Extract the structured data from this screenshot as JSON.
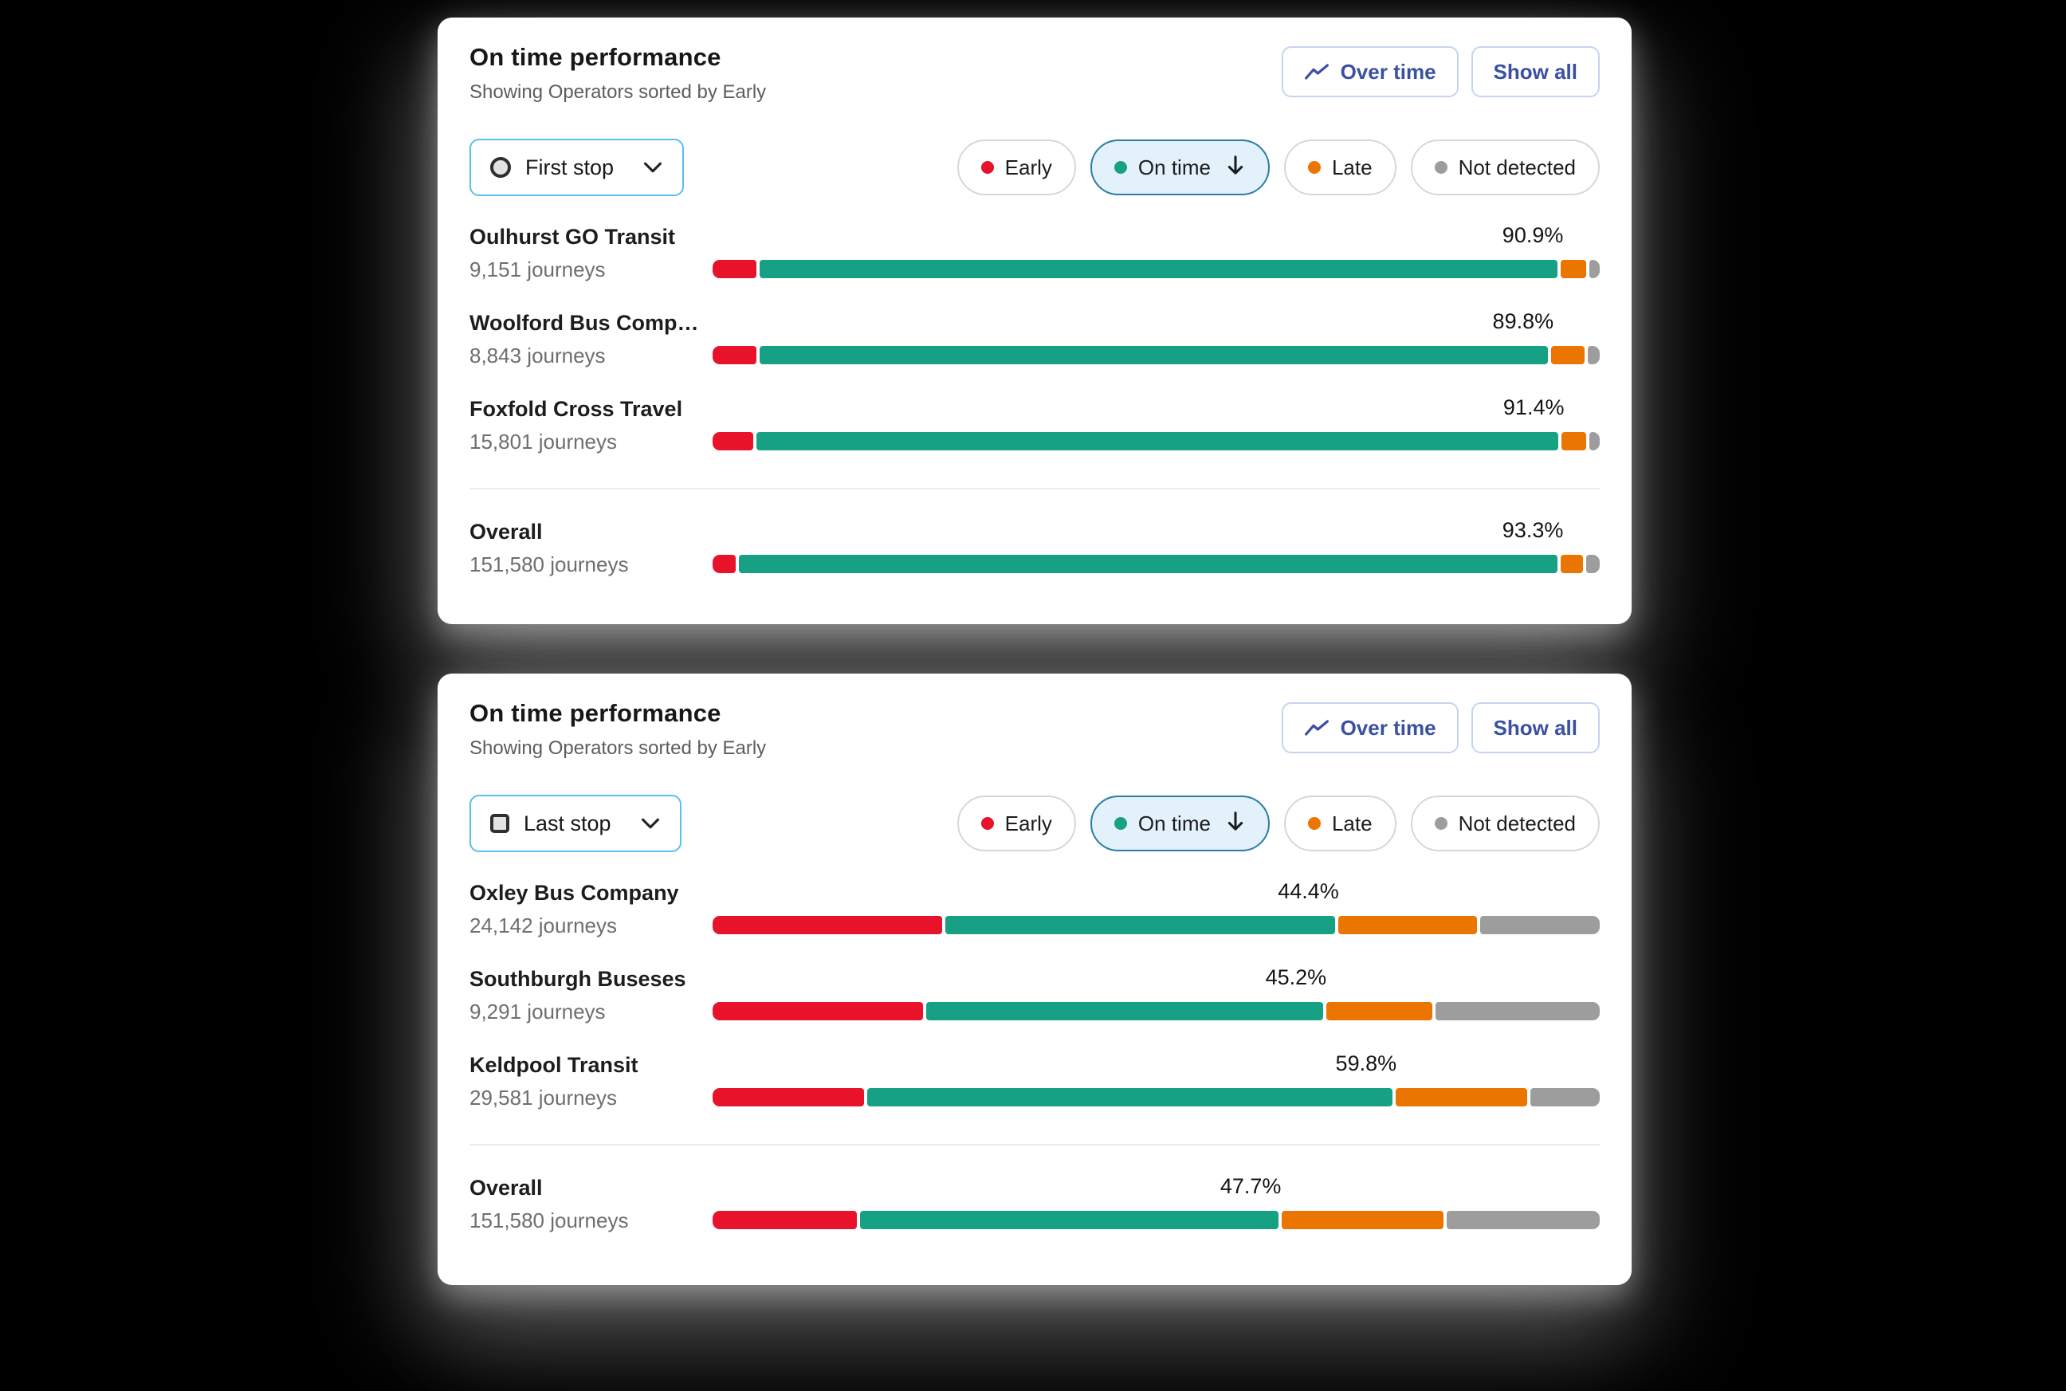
{
  "window": {
    "background": "#000000",
    "card_background": "#ffffff"
  },
  "colors": {
    "early": "#e8132b",
    "on_time": "#17a184",
    "late": "#ea7500",
    "not_detected": "#9d9d9d",
    "accent_blue": "#3a50a2",
    "button_border": "#c7d3f3",
    "dropdown_border": "#58bfee",
    "chip_border": "#d7d7d7",
    "chip_selected_bg": "#e2f1fa",
    "chip_selected_border": "#2b7da5"
  },
  "legend": [
    {
      "id": "early",
      "label": "Early",
      "color": "#e8132b",
      "selected": false
    },
    {
      "id": "on_time",
      "label": "On time",
      "color": "#17a184",
      "selected": true,
      "sort": "descending"
    },
    {
      "id": "late",
      "label": "Late",
      "color": "#ea7500",
      "selected": false
    },
    {
      "id": "not_detected",
      "label": "Not detected",
      "color": "#9d9d9d",
      "selected": false
    }
  ],
  "cards": [
    {
      "title": "On time performance",
      "subtitle": "Showing Operators sorted by Early",
      "buttons": {
        "over_time": "Over time",
        "show_all": "Show all"
      },
      "stop_selector": {
        "label": "First stop",
        "icon": "circle"
      },
      "rows": [
        {
          "name": "Oulhurst GO Transit",
          "journeys": "9,151 journeys",
          "pct_label": "90.9%",
          "segments": {
            "early": 5.0,
            "on_time": 90.9,
            "late": 2.9,
            "not_detected": 1.2
          }
        },
        {
          "name": "Woolford Bus Comp…",
          "journeys": "8,843 journeys",
          "pct_label": "89.8%",
          "segments": {
            "early": 5.0,
            "on_time": 89.8,
            "late": 3.8,
            "not_detected": 1.4
          }
        },
        {
          "name": "Foxfold Cross Travel",
          "journeys": "15,801 journeys",
          "pct_label": "91.4%",
          "segments": {
            "early": 4.6,
            "on_time": 91.4,
            "late": 2.8,
            "not_detected": 1.2
          }
        }
      ],
      "overall": {
        "name": "Overall",
        "journeys": "151,580 journeys",
        "pct_label": "93.3%",
        "segments": {
          "early": 2.6,
          "on_time": 93.3,
          "late": 2.6,
          "not_detected": 1.5
        }
      }
    },
    {
      "title": "On time performance",
      "subtitle": "Showing Operators sorted by Early",
      "buttons": {
        "over_time": "Over time",
        "show_all": "Show all"
      },
      "stop_selector": {
        "label": "Last stop",
        "icon": "square"
      },
      "rows": [
        {
          "name": "Oxley Bus Company",
          "journeys": "24,142 journeys",
          "pct_label": "44.4%",
          "segments": {
            "early": 26.2,
            "on_time": 44.4,
            "late": 15.8,
            "not_detected": 13.6
          }
        },
        {
          "name": "Southburgh Buseses",
          "journeys": "9,291 journeys",
          "pct_label": "45.2%",
          "segments": {
            "early": 24.0,
            "on_time": 45.2,
            "late": 12.1,
            "not_detected": 18.7
          }
        },
        {
          "name": "Keldpool Transit",
          "journeys": "29,581 journeys",
          "pct_label": "59.8%",
          "segments": {
            "early": 17.3,
            "on_time": 59.8,
            "late": 15.0,
            "not_detected": 7.9
          }
        }
      ],
      "overall": {
        "name": "Overall",
        "journeys": "151,580 journeys",
        "pct_label": "47.7%",
        "segments": {
          "early": 16.4,
          "on_time": 47.7,
          "late": 18.5,
          "not_detected": 17.4
        }
      }
    }
  ],
  "chart_data": [
    {
      "type": "bar",
      "orientation": "horizontal",
      "stacked": true,
      "title": "On time performance — First stop",
      "categories": [
        "Oulhurst GO Transit",
        "Woolford Bus Comp…",
        "Foxfold Cross Travel",
        "Overall"
      ],
      "journeys": [
        9151,
        8843,
        15801,
        151580
      ],
      "series": [
        {
          "name": "Early",
          "values": [
            5.0,
            5.0,
            4.6,
            2.6
          ]
        },
        {
          "name": "On time",
          "values": [
            90.9,
            89.8,
            91.4,
            93.3
          ]
        },
        {
          "name": "Late",
          "values": [
            2.9,
            3.8,
            2.8,
            2.6
          ]
        },
        {
          "name": "Not detected",
          "values": [
            1.2,
            1.4,
            1.2,
            1.5
          ]
        }
      ],
      "value_labels": [
        "90.9%",
        "89.8%",
        "91.4%",
        "93.3%"
      ],
      "xlim": [
        0,
        100
      ],
      "legend_position": "top-right",
      "grid": false
    },
    {
      "type": "bar",
      "orientation": "horizontal",
      "stacked": true,
      "title": "On time performance — Last stop",
      "categories": [
        "Oxley Bus Company",
        "Southburgh Buseses",
        "Keldpool Transit",
        "Overall"
      ],
      "journeys": [
        24142,
        9291,
        29581,
        151580
      ],
      "series": [
        {
          "name": "Early",
          "values": [
            26.2,
            24.0,
            17.3,
            16.4
          ]
        },
        {
          "name": "On time",
          "values": [
            44.4,
            45.2,
            59.8,
            47.7
          ]
        },
        {
          "name": "Late",
          "values": [
            15.8,
            12.1,
            15.0,
            18.5
          ]
        },
        {
          "name": "Not detected",
          "values": [
            13.6,
            18.7,
            7.9,
            17.4
          ]
        }
      ],
      "value_labels": [
        "44.4%",
        "45.2%",
        "59.8%",
        "47.7%"
      ],
      "xlim": [
        0,
        100
      ],
      "legend_position": "top-right",
      "grid": false
    }
  ]
}
